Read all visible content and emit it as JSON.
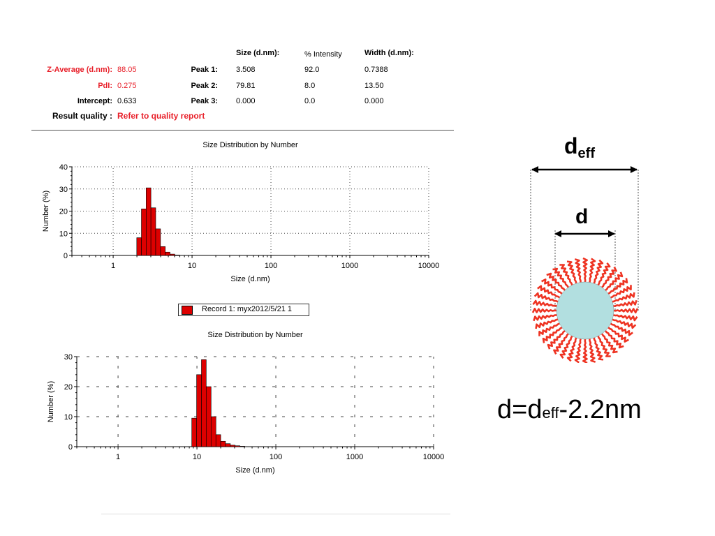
{
  "summary": {
    "col_size": "Size (d.nm):",
    "col_intensity": "% Intensity",
    "col_width": "Width (d.nm):",
    "z_label": "Z-Average (d.nm):",
    "z_value": "88.05",
    "pdi_label": "PdI:",
    "pdi_value": "0.275",
    "intercept_label": "Intercept:",
    "intercept_value": "0.633",
    "rq_label": "Result quality :",
    "rq_value": "Refer to quality report",
    "peaks": [
      {
        "label": "Peak 1:",
        "size": "3.508",
        "intensity": "92.0",
        "width": "0.7388"
      },
      {
        "label": "Peak 2:",
        "size": "79.81",
        "intensity": "8.0",
        "width": "13.50"
      },
      {
        "label": "Peak 3:",
        "size": "0.000",
        "intensity": "0.0",
        "width": "0.000"
      }
    ]
  },
  "legend": {
    "label": "Record 1: myx2012/5/21 1",
    "color": "#dd0000"
  },
  "diagram": {
    "deff_main": "d",
    "deff_sub": "eff",
    "d_label": "d",
    "core_color": "#b2dfe0",
    "ligand_color": "#ee3322"
  },
  "formula": {
    "a": "d=d",
    "sub": "eff",
    "b": "-2.2nm"
  },
  "chart_data": [
    {
      "type": "bar",
      "title": "Size Distribution by Number",
      "xlabel": "Size (d.nm)",
      "ylabel": "Number (%)",
      "xscale": "log",
      "xlim": [
        0.3,
        10000
      ],
      "ylim": [
        0,
        40
      ],
      "yticks": [
        0,
        10,
        20,
        30,
        40
      ],
      "xticks": [
        1,
        10,
        100,
        1000,
        10000
      ],
      "xticklabels": [
        "1",
        "10",
        "100",
        "1000",
        "10000"
      ],
      "bar_color": "#dd0000",
      "bins": [
        {
          "x0": 1.99,
          "x1": 2.28,
          "value": 8
        },
        {
          "x0": 2.28,
          "x1": 2.62,
          "value": 21
        },
        {
          "x0": 2.62,
          "x1": 3.01,
          "value": 30.5
        },
        {
          "x0": 3.01,
          "x1": 3.46,
          "value": 21.5
        },
        {
          "x0": 3.46,
          "x1": 3.98,
          "value": 12
        },
        {
          "x0": 3.98,
          "x1": 4.57,
          "value": 4
        },
        {
          "x0": 4.57,
          "x1": 5.25,
          "value": 1.5
        },
        {
          "x0": 5.25,
          "x1": 6.04,
          "value": 0.6
        },
        {
          "x0": 6.04,
          "x1": 6.94,
          "value": 0.2
        }
      ]
    },
    {
      "type": "bar",
      "title": "Size Distribution by Number",
      "xlabel": "Size (d.nm)",
      "ylabel": "Number (%)",
      "xscale": "log",
      "xlim": [
        0.3,
        10000
      ],
      "ylim": [
        0,
        30
      ],
      "yticks": [
        0,
        10,
        20,
        30
      ],
      "xticks": [
        1,
        10,
        100,
        1000,
        10000
      ],
      "xticklabels": [
        "1",
        "10",
        "100",
        "1000",
        "10000"
      ],
      "bar_color": "#dd0000",
      "bins": [
        {
          "x0": 8.6,
          "x1": 9.9,
          "value": 9.5
        },
        {
          "x0": 9.9,
          "x1": 11.4,
          "value": 24
        },
        {
          "x0": 11.4,
          "x1": 13.1,
          "value": 29
        },
        {
          "x0": 13.1,
          "x1": 15.1,
          "value": 20
        },
        {
          "x0": 15.1,
          "x1": 17.4,
          "value": 10
        },
        {
          "x0": 17.4,
          "x1": 20.0,
          "value": 4
        },
        {
          "x0": 20.0,
          "x1": 23.0,
          "value": 1.8
        },
        {
          "x0": 23.0,
          "x1": 26.5,
          "value": 1
        },
        {
          "x0": 26.5,
          "x1": 30.5,
          "value": 0.5
        },
        {
          "x0": 30.5,
          "x1": 35.1,
          "value": 0.3
        },
        {
          "x0": 35.1,
          "x1": 40.4,
          "value": 0.15
        }
      ]
    }
  ]
}
